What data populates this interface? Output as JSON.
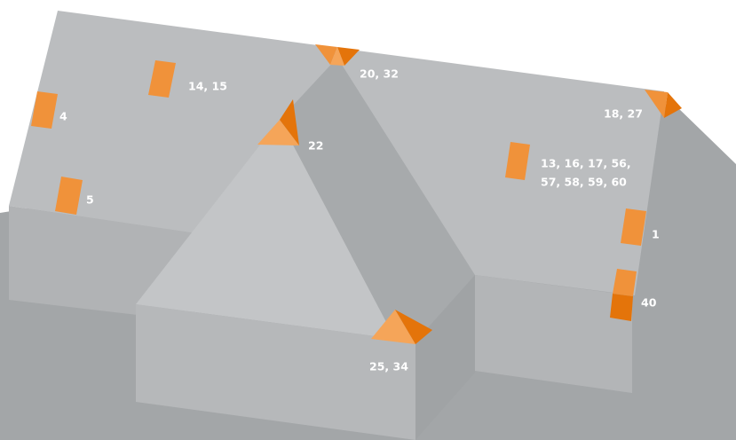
{
  "labels": [
    "14, 15",
    "4",
    "5",
    "20, 32",
    "22",
    "18, 27",
    "13, 16, 17, 56,",
    "57, 58, 59, 60",
    "1",
    "40",
    "25, 34"
  ]
}
